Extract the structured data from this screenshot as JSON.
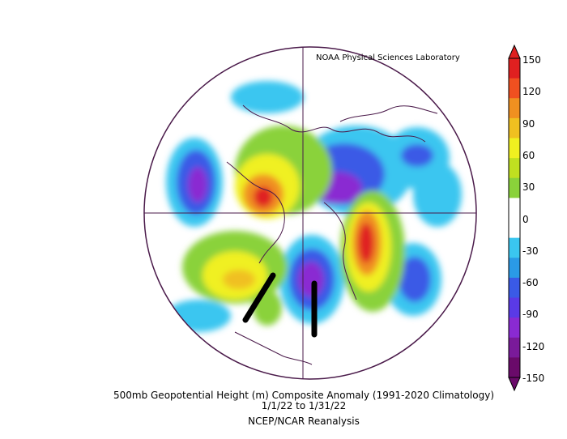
{
  "credit": "NOAA Physical Sciences Laboratory",
  "caption": {
    "title": "500mb Geopotential Height (m) Composite Anomaly (1991-2020 Climatology)",
    "dates": "1/1/22  to 1/31/22",
    "source": "NCEP/NCAR Reanalysis"
  },
  "colorbar": {
    "ticks": [
      "150",
      "120",
      "90",
      "60",
      "30",
      "0",
      "-30",
      "-60",
      "-90",
      "-120",
      "-150"
    ],
    "colors": [
      "#6a0a6a",
      "#7a1a9a",
      "#8a2ad2",
      "#5a3ae6",
      "#3a5ae6",
      "#2a9ae6",
      "#3ac6f0",
      "#ffffff",
      "#ffffff",
      "#8ad23a",
      "#c0e020",
      "#f0f020",
      "#f0c020",
      "#f09020",
      "#f05020",
      "#e02020"
    ]
  }
}
